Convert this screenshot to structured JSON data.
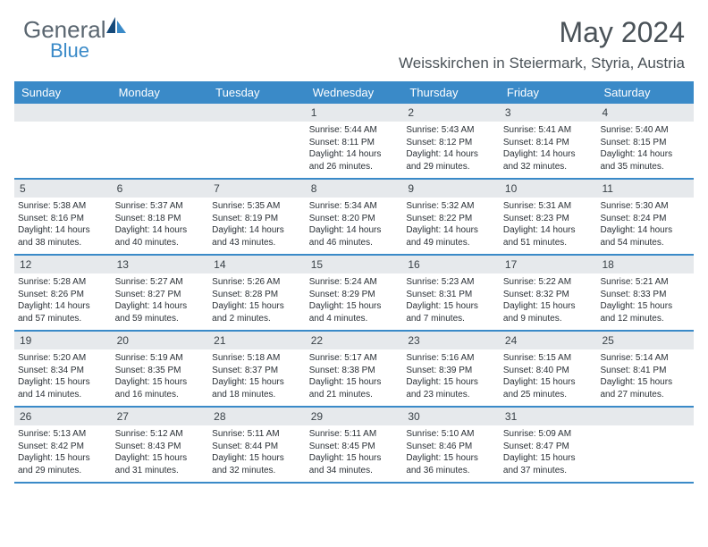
{
  "brand": {
    "part1": "General",
    "part2": "Blue"
  },
  "title": "May 2024",
  "location": "Weisskirchen in Steiermark, Styria, Austria",
  "colors": {
    "header_bg": "#3a8ac8",
    "daynum_bg": "#e6e9ec",
    "text": "#2a3036",
    "title_text": "#4a5258",
    "logo_gray": "#5a6670",
    "logo_blue": "#3a8ac8"
  },
  "day_headers": [
    "Sunday",
    "Monday",
    "Tuesday",
    "Wednesday",
    "Thursday",
    "Friday",
    "Saturday"
  ],
  "weeks": [
    [
      {
        "n": "",
        "lines": []
      },
      {
        "n": "",
        "lines": []
      },
      {
        "n": "",
        "lines": []
      },
      {
        "n": "1",
        "lines": [
          "Sunrise: 5:44 AM",
          "Sunset: 8:11 PM",
          "Daylight: 14 hours",
          "and 26 minutes."
        ]
      },
      {
        "n": "2",
        "lines": [
          "Sunrise: 5:43 AM",
          "Sunset: 8:12 PM",
          "Daylight: 14 hours",
          "and 29 minutes."
        ]
      },
      {
        "n": "3",
        "lines": [
          "Sunrise: 5:41 AM",
          "Sunset: 8:14 PM",
          "Daylight: 14 hours",
          "and 32 minutes."
        ]
      },
      {
        "n": "4",
        "lines": [
          "Sunrise: 5:40 AM",
          "Sunset: 8:15 PM",
          "Daylight: 14 hours",
          "and 35 minutes."
        ]
      }
    ],
    [
      {
        "n": "5",
        "lines": [
          "Sunrise: 5:38 AM",
          "Sunset: 8:16 PM",
          "Daylight: 14 hours",
          "and 38 minutes."
        ]
      },
      {
        "n": "6",
        "lines": [
          "Sunrise: 5:37 AM",
          "Sunset: 8:18 PM",
          "Daylight: 14 hours",
          "and 40 minutes."
        ]
      },
      {
        "n": "7",
        "lines": [
          "Sunrise: 5:35 AM",
          "Sunset: 8:19 PM",
          "Daylight: 14 hours",
          "and 43 minutes."
        ]
      },
      {
        "n": "8",
        "lines": [
          "Sunrise: 5:34 AM",
          "Sunset: 8:20 PM",
          "Daylight: 14 hours",
          "and 46 minutes."
        ]
      },
      {
        "n": "9",
        "lines": [
          "Sunrise: 5:32 AM",
          "Sunset: 8:22 PM",
          "Daylight: 14 hours",
          "and 49 minutes."
        ]
      },
      {
        "n": "10",
        "lines": [
          "Sunrise: 5:31 AM",
          "Sunset: 8:23 PM",
          "Daylight: 14 hours",
          "and 51 minutes."
        ]
      },
      {
        "n": "11",
        "lines": [
          "Sunrise: 5:30 AM",
          "Sunset: 8:24 PM",
          "Daylight: 14 hours",
          "and 54 minutes."
        ]
      }
    ],
    [
      {
        "n": "12",
        "lines": [
          "Sunrise: 5:28 AM",
          "Sunset: 8:26 PM",
          "Daylight: 14 hours",
          "and 57 minutes."
        ]
      },
      {
        "n": "13",
        "lines": [
          "Sunrise: 5:27 AM",
          "Sunset: 8:27 PM",
          "Daylight: 14 hours",
          "and 59 minutes."
        ]
      },
      {
        "n": "14",
        "lines": [
          "Sunrise: 5:26 AM",
          "Sunset: 8:28 PM",
          "Daylight: 15 hours",
          "and 2 minutes."
        ]
      },
      {
        "n": "15",
        "lines": [
          "Sunrise: 5:24 AM",
          "Sunset: 8:29 PM",
          "Daylight: 15 hours",
          "and 4 minutes."
        ]
      },
      {
        "n": "16",
        "lines": [
          "Sunrise: 5:23 AM",
          "Sunset: 8:31 PM",
          "Daylight: 15 hours",
          "and 7 minutes."
        ]
      },
      {
        "n": "17",
        "lines": [
          "Sunrise: 5:22 AM",
          "Sunset: 8:32 PM",
          "Daylight: 15 hours",
          "and 9 minutes."
        ]
      },
      {
        "n": "18",
        "lines": [
          "Sunrise: 5:21 AM",
          "Sunset: 8:33 PM",
          "Daylight: 15 hours",
          "and 12 minutes."
        ]
      }
    ],
    [
      {
        "n": "19",
        "lines": [
          "Sunrise: 5:20 AM",
          "Sunset: 8:34 PM",
          "Daylight: 15 hours",
          "and 14 minutes."
        ]
      },
      {
        "n": "20",
        "lines": [
          "Sunrise: 5:19 AM",
          "Sunset: 8:35 PM",
          "Daylight: 15 hours",
          "and 16 minutes."
        ]
      },
      {
        "n": "21",
        "lines": [
          "Sunrise: 5:18 AM",
          "Sunset: 8:37 PM",
          "Daylight: 15 hours",
          "and 18 minutes."
        ]
      },
      {
        "n": "22",
        "lines": [
          "Sunrise: 5:17 AM",
          "Sunset: 8:38 PM",
          "Daylight: 15 hours",
          "and 21 minutes."
        ]
      },
      {
        "n": "23",
        "lines": [
          "Sunrise: 5:16 AM",
          "Sunset: 8:39 PM",
          "Daylight: 15 hours",
          "and 23 minutes."
        ]
      },
      {
        "n": "24",
        "lines": [
          "Sunrise: 5:15 AM",
          "Sunset: 8:40 PM",
          "Daylight: 15 hours",
          "and 25 minutes."
        ]
      },
      {
        "n": "25",
        "lines": [
          "Sunrise: 5:14 AM",
          "Sunset: 8:41 PM",
          "Daylight: 15 hours",
          "and 27 minutes."
        ]
      }
    ],
    [
      {
        "n": "26",
        "lines": [
          "Sunrise: 5:13 AM",
          "Sunset: 8:42 PM",
          "Daylight: 15 hours",
          "and 29 minutes."
        ]
      },
      {
        "n": "27",
        "lines": [
          "Sunrise: 5:12 AM",
          "Sunset: 8:43 PM",
          "Daylight: 15 hours",
          "and 31 minutes."
        ]
      },
      {
        "n": "28",
        "lines": [
          "Sunrise: 5:11 AM",
          "Sunset: 8:44 PM",
          "Daylight: 15 hours",
          "and 32 minutes."
        ]
      },
      {
        "n": "29",
        "lines": [
          "Sunrise: 5:11 AM",
          "Sunset: 8:45 PM",
          "Daylight: 15 hours",
          "and 34 minutes."
        ]
      },
      {
        "n": "30",
        "lines": [
          "Sunrise: 5:10 AM",
          "Sunset: 8:46 PM",
          "Daylight: 15 hours",
          "and 36 minutes."
        ]
      },
      {
        "n": "31",
        "lines": [
          "Sunrise: 5:09 AM",
          "Sunset: 8:47 PM",
          "Daylight: 15 hours",
          "and 37 minutes."
        ]
      },
      {
        "n": "",
        "lines": []
      }
    ]
  ]
}
